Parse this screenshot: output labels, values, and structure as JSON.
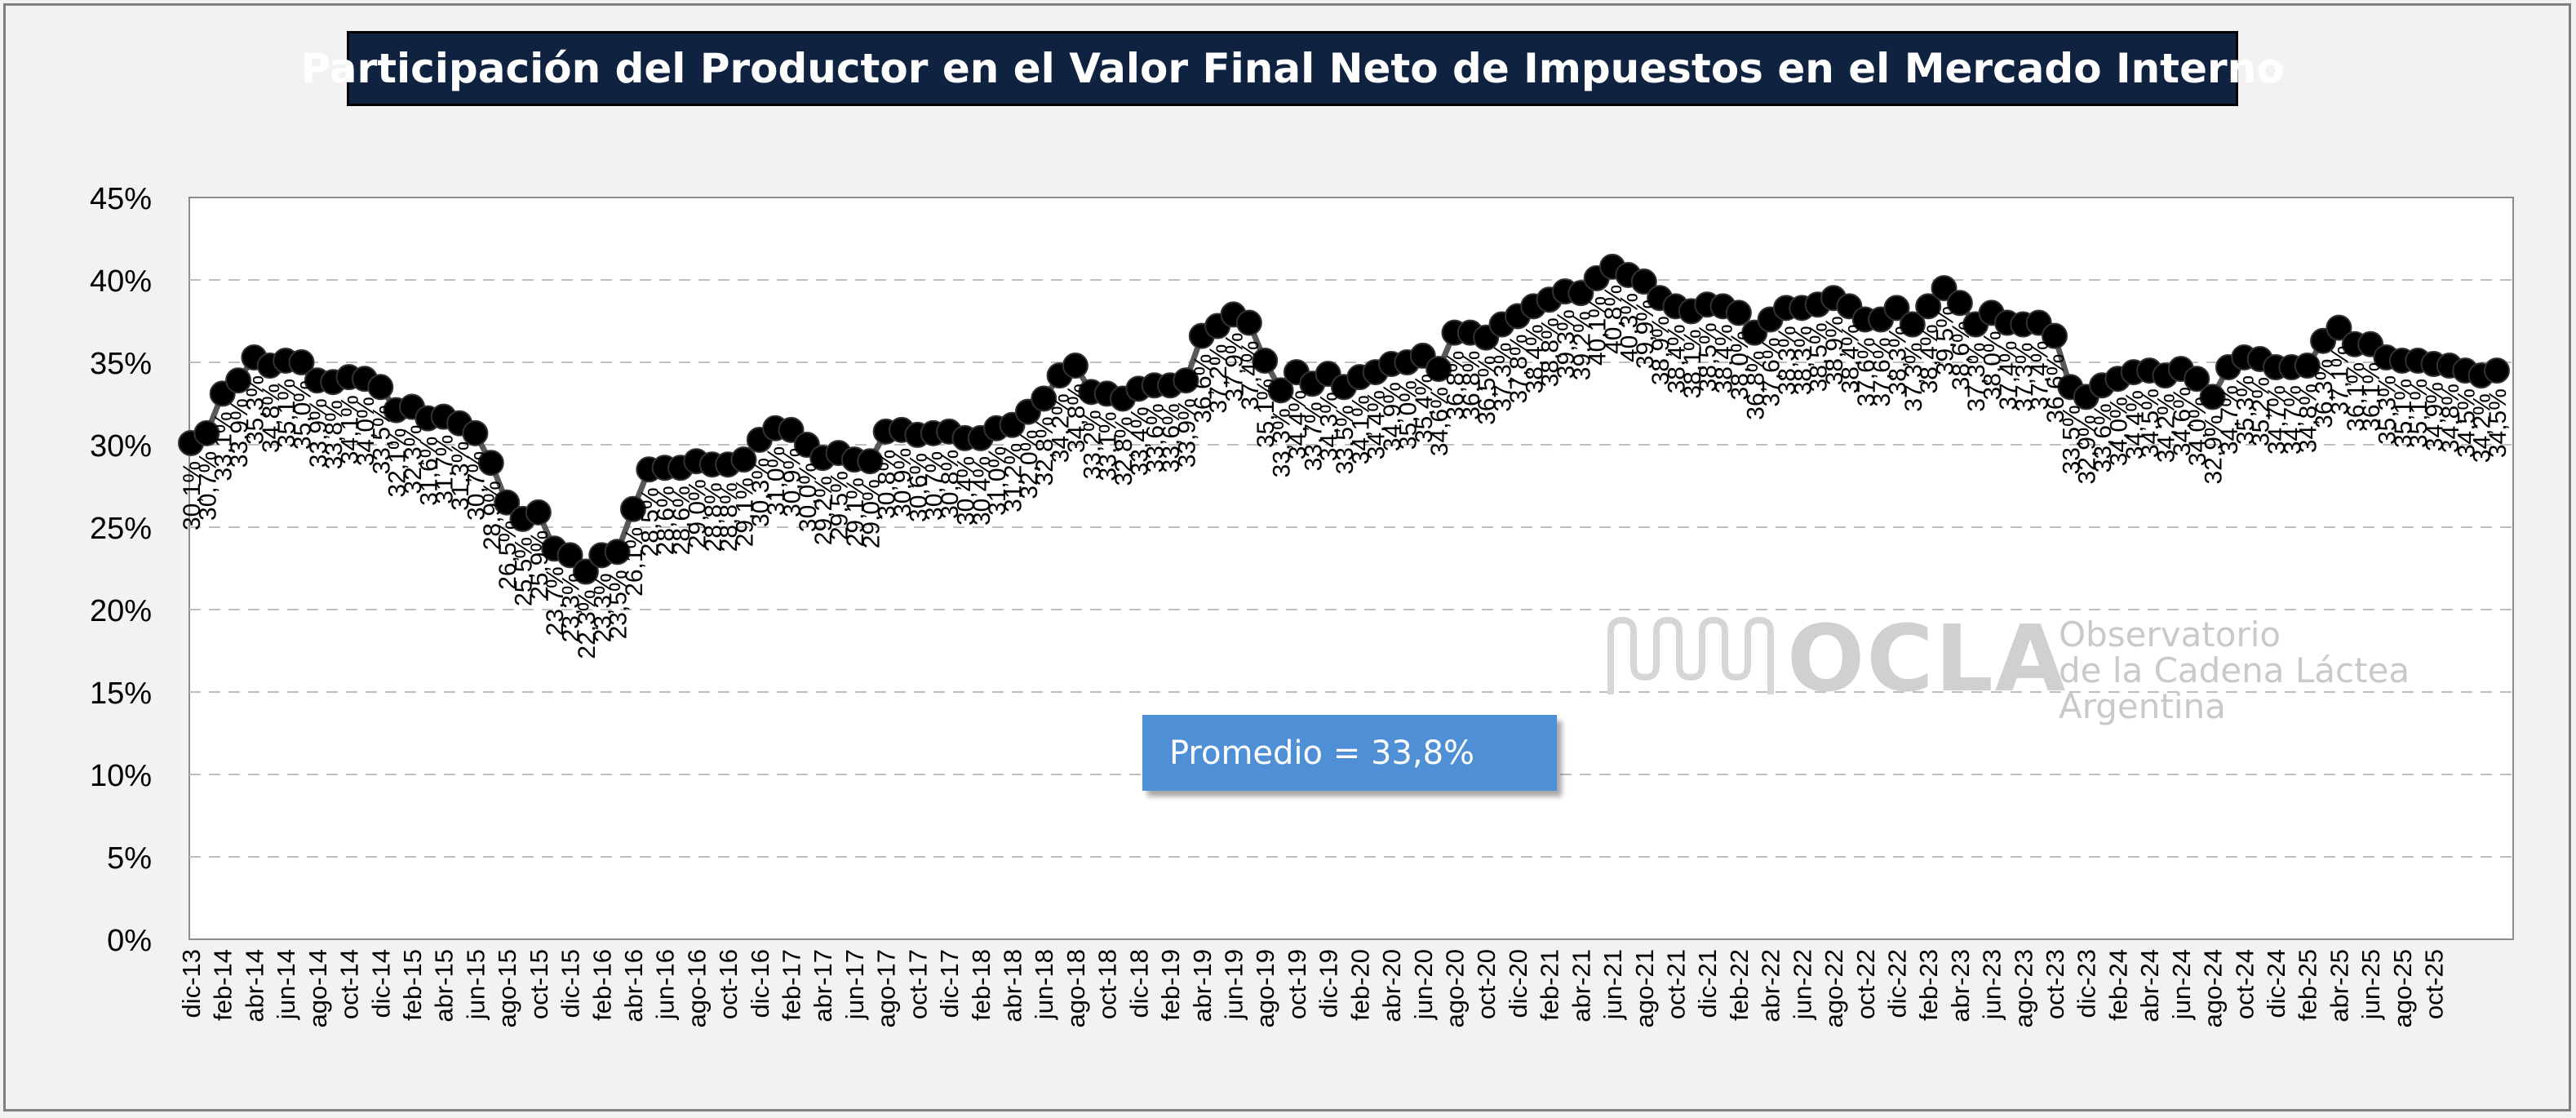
{
  "title": "Participación del Productor en el Valor Final Neto de Impuestos en el Mercado Interno",
  "average_label": "Promedio = 33,8%",
  "logo": {
    "name": "OCLA",
    "line1": "Observatorio",
    "line2": "de la Cadena Láctea",
    "line3": "Argentina"
  },
  "colors": {
    "page_background": "#f2f2f2",
    "title_background": "#0f2340",
    "title_text": "#ffffff",
    "line": "#595959",
    "marker": "#000000",
    "average_box": "#4f8fd6",
    "gridline": "#bfbfbf"
  },
  "chart_data": {
    "type": "line",
    "title": "Participación del Productor en el Valor Final Neto de Impuestos en el Mercado Interno",
    "xlabel": "",
    "ylabel": "",
    "ylim": [
      0,
      45
    ],
    "y_ticks": [
      "0%",
      "5%",
      "10%",
      "15%",
      "20%",
      "25%",
      "30%",
      "35%",
      "40%",
      "45%"
    ],
    "grid": "horizontal dashed",
    "legend": "none",
    "x_tick_labels": [
      "dic-13",
      "feb-14",
      "abr-14",
      "jun-14",
      "ago-14",
      "oct-14",
      "dic-14",
      "feb-15",
      "abr-15",
      "jun-15",
      "ago-15",
      "oct-15",
      "dic-15",
      "feb-16",
      "abr-16",
      "jun-16",
      "ago-16",
      "oct-16",
      "dic-16",
      "feb-17",
      "abr-17",
      "jun-17",
      "ago-17",
      "oct-17",
      "dic-17",
      "feb-18",
      "abr-18",
      "jun-18",
      "ago-18",
      "oct-18",
      "dic-18",
      "feb-19",
      "abr-19",
      "jun-19",
      "ago-19",
      "oct-19",
      "dic-19",
      "feb-20",
      "abr-20",
      "jun-20",
      "ago-20",
      "oct-20",
      "dic-20",
      "feb-21",
      "abr-21",
      "jun-21",
      "ago-21",
      "oct-21",
      "dic-21",
      "feb-22",
      "abr-22",
      "jun-22",
      "ago-22",
      "oct-22",
      "dic-22",
      "feb-23",
      "abr-23",
      "jun-23",
      "ago-23",
      "oct-23",
      "dic-23",
      "feb-24",
      "abr-24",
      "jun-24",
      "ago-24",
      "oct-24",
      "dic-24",
      "feb-25",
      "abr-25",
      "jun-25",
      "ago-25",
      "oct-25"
    ],
    "values": [
      30.1,
      30.7,
      33.1,
      33.9,
      35.3,
      34.8,
      35.1,
      35.0,
      33.9,
      33.8,
      34.1,
      34.0,
      33.5,
      32.1,
      32.3,
      31.6,
      31.7,
      31.3,
      30.7,
      28.9,
      26.5,
      25.5,
      25.9,
      23.7,
      23.3,
      22.3,
      23.3,
      23.5,
      26.1,
      28.5,
      28.6,
      28.6,
      29.0,
      28.8,
      28.8,
      29.1,
      30.3,
      31.0,
      30.9,
      30.0,
      29.2,
      29.5,
      29.1,
      29.0,
      30.8,
      30.9,
      30.6,
      30.7,
      30.8,
      30.4,
      30.4,
      31.0,
      31.2,
      32.0,
      32.8,
      34.2,
      34.8,
      33.2,
      33.1,
      32.8,
      33.4,
      33.6,
      33.6,
      33.9,
      36.6,
      37.2,
      37.9,
      37.4,
      35.1,
      33.3,
      34.4,
      33.7,
      34.3,
      33.5,
      34.1,
      34.4,
      34.9,
      35.0,
      35.4,
      34.6,
      36.8,
      36.8,
      36.5,
      37.3,
      37.8,
      38.4,
      38.8,
      39.3,
      39.2,
      40.1,
      40.8,
      40.3,
      39.9,
      38.9,
      38.4,
      38.1,
      38.5,
      38.4,
      38.0,
      36.8,
      37.6,
      38.3,
      38.3,
      38.5,
      38.9,
      38.4,
      37.6,
      37.6,
      38.3,
      37.3,
      38.4,
      39.5,
      38.6,
      37.3,
      38.0,
      37.4,
      37.3,
      37.4,
      36.6,
      33.5,
      32.9,
      33.6,
      34.0,
      34.4,
      34.5,
      34.2,
      34.6,
      34.0,
      32.9,
      34.7,
      35.3,
      35.2,
      34.7,
      34.7,
      34.8,
      36.3,
      37.1,
      36.1,
      36.1,
      35.3,
      35.1,
      35.1,
      34.9,
      34.8,
      34.5,
      34.2,
      34.5
    ],
    "data_labels": [
      "30,1%",
      "30,7%",
      "33,1%",
      "33,9%",
      "35,3%",
      "34,8%",
      "35,1%",
      "35,0%",
      "33,9%",
      "33,8%",
      "34,1%",
      "34,0%",
      "33,5%",
      "32,1%",
      "32,3%",
      "31,6%",
      "31,7%",
      "31,3%",
      "30,7%",
      "28,9%",
      "26,5%",
      "25,5%",
      "25,9%",
      "23,7%",
      "23,3%",
      "22,3%",
      "23,3%",
      "23,5%",
      "26,1%",
      "28,5%",
      "28,6%",
      "28,6%",
      "29,0%",
      "28,8%",
      "28,8%",
      "29,1%",
      "30,3%",
      "31,0%",
      "30,9%",
      "30,0%",
      "29,2%",
      "29,5%",
      "29,1%",
      "29,0%",
      "30,8%",
      "30,9%",
      "30,6%",
      "30,7%",
      "30,8%",
      "30,4%",
      "30,4%",
      "31,0%",
      "31,2%",
      "32,0%",
      "32,8%",
      "34,2%",
      "34,8%",
      "33,2%",
      "33,1%",
      "32,8%",
      "33,4%",
      "33,6%",
      "33,6%",
      "33,9%",
      "36,6%",
      "37,2%",
      "37,9%",
      "37,4%",
      "35,1%",
      "33,3%",
      "34,4%",
      "33,7%",
      "34,3%",
      "33,5%",
      "34,1%",
      "34,4%",
      "34,9%",
      "35,0%",
      "35,4%",
      "34,6%",
      "36,8%",
      "36,8%",
      "36,5%",
      "37,3%",
      "37,8%",
      "38,4%",
      "38,8%",
      "39,3%",
      "39,2%",
      "40,1%",
      "40,8%",
      "40,3%",
      "39,9%",
      "38,9%",
      "38,4%",
      "38,1%",
      "38,5%",
      "38,4%",
      "38,0%",
      "36,8%",
      "37,6%",
      "38,3%",
      "38,3%",
      "38,5%",
      "38,9%",
      "38,4%",
      "37,6%",
      "37,6%",
      "38,3%",
      "37,3%",
      "38,4%",
      "39,5%",
      "38,6%",
      "37,3%",
      "38,0%",
      "37,4%",
      "37,3%",
      "37,4%",
      "36,6%",
      "33,5%",
      "32,9%",
      "33,6%",
      "34,0%",
      "34,4%",
      "34,5%",
      "34,2%",
      "34,6%",
      "34,0%",
      "32,9%",
      "34,7%",
      "35,3%",
      "35,2%",
      "34,7%",
      "34,7%",
      "34,8%",
      "36,3%",
      "37,1%",
      "36,1%",
      "36,1%",
      "35,3%",
      "35,1%",
      "35,1%",
      "34,9%",
      "34,8%",
      "34,5%",
      "34,2%",
      "34,5%"
    ]
  }
}
